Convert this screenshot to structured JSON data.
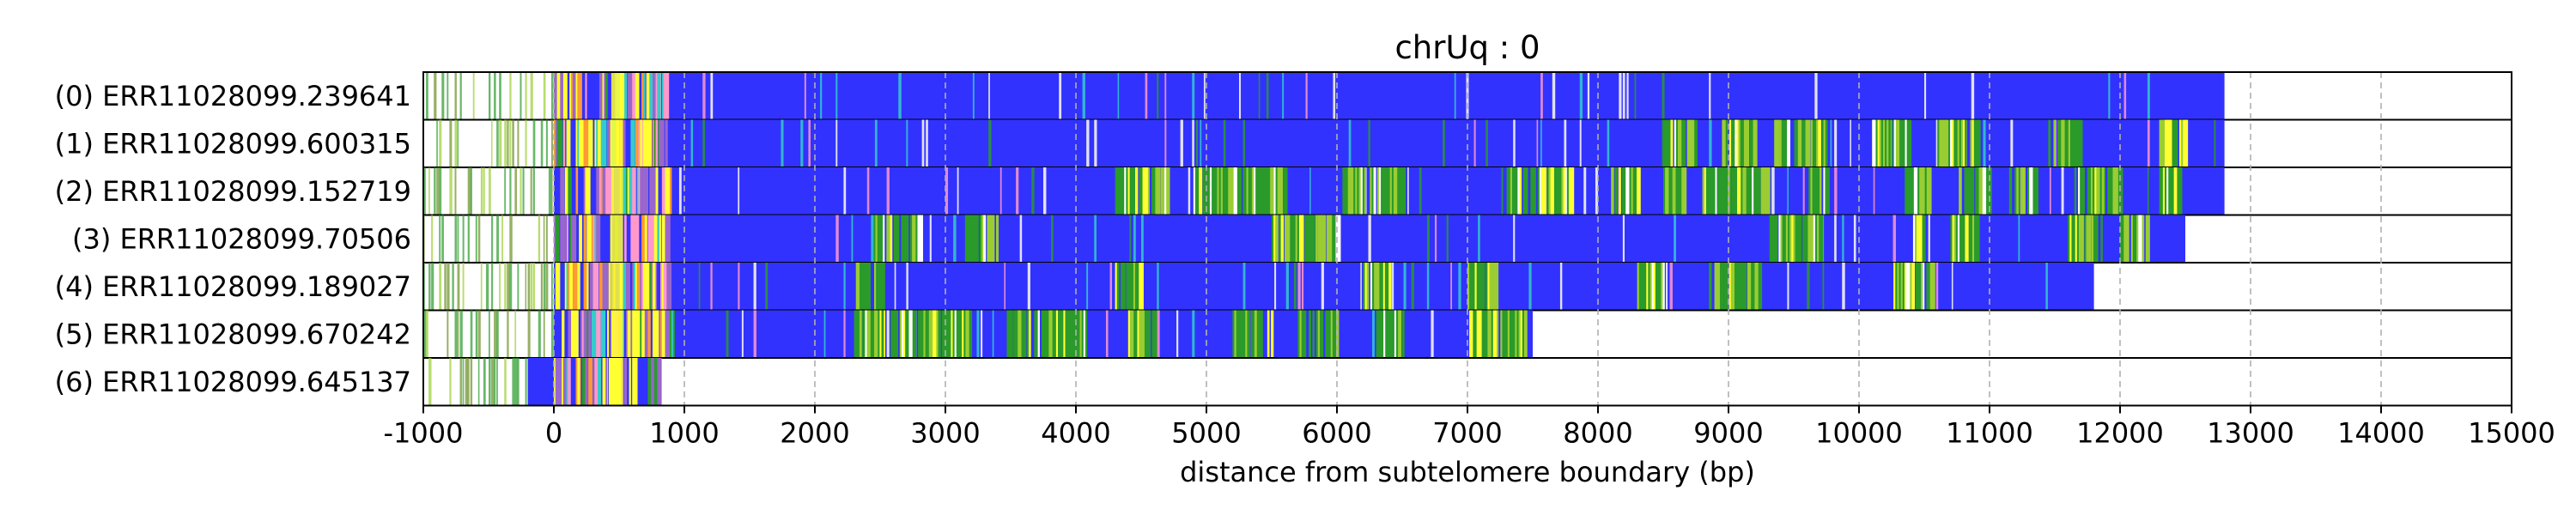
{
  "chart_data": {
    "type": "heatmap",
    "title": "chrUq : 0",
    "xlabel": "distance from subtelomere boundary (bp)",
    "ylabel": "",
    "xlim": [
      -1000,
      15000
    ],
    "xticks": [
      -1000,
      0,
      1000,
      2000,
      3000,
      4000,
      5000,
      6000,
      7000,
      8000,
      9000,
      10000,
      11000,
      12000,
      13000,
      14000,
      15000
    ],
    "xtick_labels": [
      "-1000",
      "0",
      "1000",
      "2000",
      "3000",
      "4000",
      "5000",
      "6000",
      "7000",
      "8000",
      "9000",
      "10000",
      "11000",
      "12000",
      "13000",
      "14000",
      "15000"
    ],
    "grid": "vertical dashed gridlines at x ticks",
    "colors": {
      "base": "#3232ff",
      "green": "#2a9a2a",
      "lightgreen": "#9acd32",
      "yellow": "#ffff33",
      "cyan": "#33cccc",
      "purple": "#9966cc",
      "pink": "#ff99cc",
      "white": "#ffffff",
      "frame": "#000000",
      "grid": "#b0b0b0"
    },
    "reads": [
      {
        "label": "(0) ERR11028099.239641",
        "start": 0,
        "end": 12800,
        "green_regions": []
      },
      {
        "label": "(1) ERR11028099.600315",
        "start": 0,
        "end": 12800,
        "green_regions": [
          [
            8500,
            8800
          ],
          [
            8950,
            9200
          ],
          [
            9350,
            9750
          ],
          [
            10100,
            10400
          ],
          [
            10600,
            10900
          ],
          [
            11450,
            11700
          ],
          [
            12300,
            12500
          ]
        ]
      },
      {
        "label": "(2) ERR11028099.152719",
        "start": 0,
        "end": 12800,
        "green_regions": [
          [
            4300,
            4700
          ],
          [
            4900,
            5600
          ],
          [
            6000,
            6500
          ],
          [
            7300,
            7800
          ],
          [
            8100,
            8300
          ],
          [
            8500,
            8650
          ],
          [
            8800,
            9300
          ],
          [
            9600,
            9750
          ],
          [
            10350,
            10550
          ],
          [
            10750,
            11000
          ],
          [
            11150,
            11350
          ],
          [
            11650,
            12000
          ],
          [
            12300,
            12450
          ]
        ]
      },
      {
        "label": "(3) ERR11028099.70506",
        "start": 0,
        "end": 12500,
        "green_regions": [
          [
            2450,
            2800
          ],
          [
            3150,
            3400
          ],
          [
            5500,
            6000
          ],
          [
            9300,
            9700
          ],
          [
            10400,
            10500
          ],
          [
            10700,
            10900
          ],
          [
            11600,
            11800
          ],
          [
            12000,
            12200
          ]
        ]
      },
      {
        "label": "(4) ERR11028099.189027",
        "start": 0,
        "end": 11800,
        "green_regions": [
          [
            2300,
            2500
          ],
          [
            4300,
            4500
          ],
          [
            6200,
            6400
          ],
          [
            7000,
            7200
          ],
          [
            8300,
            8500
          ],
          [
            8850,
            9250
          ],
          [
            10250,
            10550
          ]
        ]
      },
      {
        "label": "(5) ERR11028099.670242",
        "start": 0,
        "end": 7500,
        "green_regions": [
          [
            2300,
            3200
          ],
          [
            3400,
            4100
          ],
          [
            4400,
            4600
          ],
          [
            5200,
            5500
          ],
          [
            5700,
            6000
          ],
          [
            6300,
            6500
          ],
          [
            7000,
            7450
          ]
        ]
      },
      {
        "label": "(6) ERR11028099.645137",
        "start": -200,
        "end": 800,
        "green_regions": []
      }
    ]
  }
}
